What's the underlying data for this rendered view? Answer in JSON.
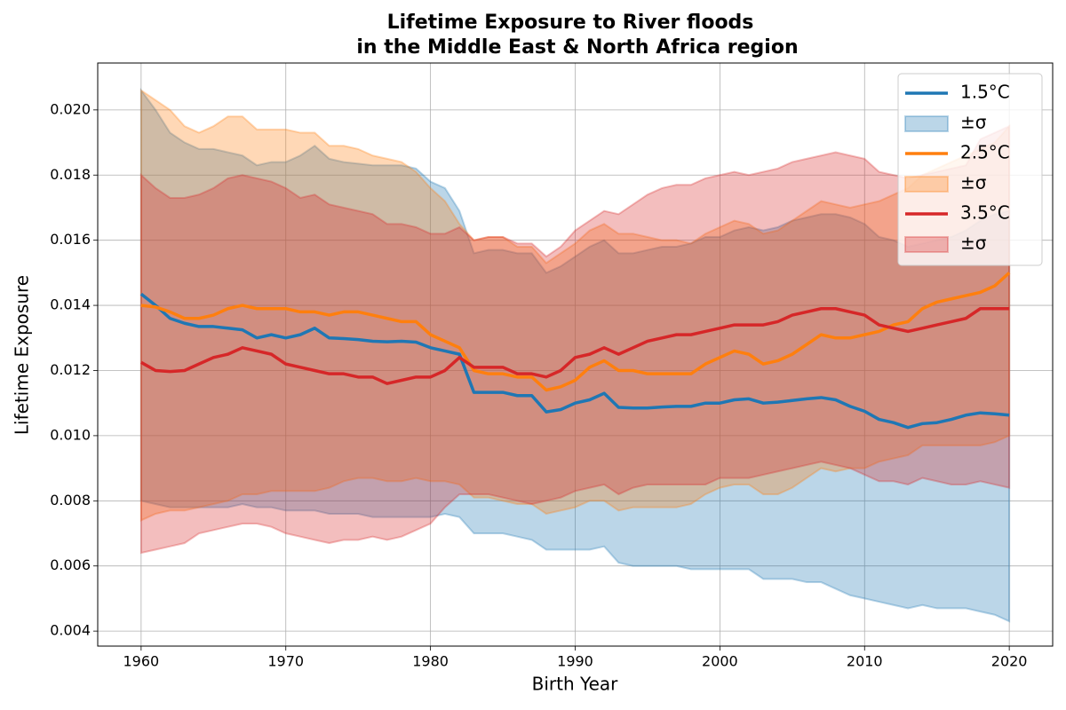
{
  "chart_data": {
    "type": "line_band",
    "title": [
      "Lifetime Exposure to River floods",
      "in the Middle East & North Africa region"
    ],
    "x_label": "Birth Year",
    "y_label": "Lifetime Exposure",
    "x": [
      1960,
      1961,
      1962,
      1963,
      1964,
      1965,
      1966,
      1967,
      1968,
      1969,
      1970,
      1971,
      1972,
      1973,
      1974,
      1975,
      1976,
      1977,
      1978,
      1979,
      1980,
      1981,
      1982,
      1983,
      1984,
      1985,
      1986,
      1987,
      1988,
      1989,
      1990,
      1991,
      1992,
      1993,
      1994,
      1995,
      1996,
      1997,
      1998,
      1999,
      2000,
      2001,
      2002,
      2003,
      2004,
      2005,
      2006,
      2007,
      2008,
      2009,
      2010,
      2011,
      2012,
      2013,
      2014,
      2015,
      2016,
      2017,
      2018,
      2019,
      2020
    ],
    "xlim": [
      1957,
      2023
    ],
    "xticks": [
      1960,
      1970,
      1980,
      1990,
      2000,
      2010,
      2020
    ],
    "ylim": [
      0.00354,
      0.02144
    ],
    "yticks": [
      0.004,
      0.006,
      0.008,
      {
        "value": 0.01,
        "label": "0.010"
      },
      0.012,
      0.014,
      0.016,
      0.018,
      {
        "value": 0.02,
        "label": "0.020"
      }
    ],
    "grid": true,
    "legend": "upper right",
    "series": [
      {
        "name": "1.5°C",
        "color": "#1f77b4",
        "values": [
          0.01435,
          0.014,
          0.0136,
          0.01345,
          0.01335,
          0.01335,
          0.0133,
          0.01325,
          0.013,
          0.0131,
          0.013,
          0.0131,
          0.0133,
          0.013,
          0.01298,
          0.01295,
          0.0129,
          0.01288,
          0.0129,
          0.01287,
          0.0127,
          0.0126,
          0.0125,
          0.01133,
          0.01133,
          0.01133,
          0.01123,
          0.01123,
          0.01073,
          0.0108,
          0.011,
          0.0111,
          0.0113,
          0.01087,
          0.01085,
          0.01085,
          0.01088,
          0.0109,
          0.0109,
          0.011,
          0.011,
          0.0111,
          0.01113,
          0.011,
          0.01103,
          0.01108,
          0.01113,
          0.01117,
          0.0111,
          0.0109,
          0.01075,
          0.0105,
          0.0104,
          0.01025,
          0.01037,
          0.0104,
          0.0105,
          0.01063,
          0.0107,
          0.01067,
          0.01063
        ],
        "band": {
          "name": "±σ",
          "upper": [
            0.0206,
            0.02,
            0.0193,
            0.019,
            0.0188,
            0.0188,
            0.0187,
            0.0186,
            0.0183,
            0.0184,
            0.0184,
            0.0186,
            0.0189,
            0.0185,
            0.0184,
            0.01835,
            0.0183,
            0.0183,
            0.0183,
            0.0182,
            0.0178,
            0.0176,
            0.0169,
            0.0156,
            0.0157,
            0.0157,
            0.0156,
            0.0156,
            0.015,
            0.0152,
            0.0155,
            0.0158,
            0.016,
            0.0156,
            0.0156,
            0.0157,
            0.0158,
            0.0158,
            0.0159,
            0.0161,
            0.0161,
            0.0163,
            0.0164,
            0.0163,
            0.0164,
            0.0166,
            0.0167,
            0.0168,
            0.0168,
            0.0167,
            0.0165,
            0.0161,
            0.016,
            0.0158,
            0.0159,
            0.016,
            0.0161,
            0.0163,
            0.0166,
            0.0168,
            0.0169
          ],
          "lower": [
            0.008,
            0.0079,
            0.0078,
            0.0078,
            0.0078,
            0.0078,
            0.0078,
            0.0079,
            0.0078,
            0.0078,
            0.0077,
            0.0077,
            0.0077,
            0.0076,
            0.0076,
            0.0076,
            0.0075,
            0.0075,
            0.0075,
            0.0075,
            0.0075,
            0.0076,
            0.0075,
            0.007,
            0.007,
            0.007,
            0.0069,
            0.0068,
            0.0065,
            0.0065,
            0.0065,
            0.0065,
            0.0066,
            0.0061,
            0.006,
            0.006,
            0.006,
            0.006,
            0.0059,
            0.0059,
            0.0059,
            0.0059,
            0.0059,
            0.0056,
            0.0056,
            0.0056,
            0.0055,
            0.0055,
            0.0053,
            0.0051,
            0.005,
            0.0049,
            0.0048,
            0.0047,
            0.0048,
            0.0047,
            0.0047,
            0.0047,
            0.0046,
            0.0045,
            0.0043
          ]
        }
      },
      {
        "name": "2.5°C",
        "color": "#ff7f0e",
        "values": [
          0.014,
          0.01395,
          0.0138,
          0.0136,
          0.0136,
          0.0137,
          0.0139,
          0.014,
          0.0139,
          0.0139,
          0.0139,
          0.0138,
          0.0138,
          0.0137,
          0.0138,
          0.0138,
          0.0137,
          0.0136,
          0.0135,
          0.0135,
          0.0131,
          0.0129,
          0.0127,
          0.012,
          0.0119,
          0.0119,
          0.0118,
          0.0118,
          0.0114,
          0.0115,
          0.0117,
          0.0121,
          0.0123,
          0.012,
          0.012,
          0.0119,
          0.0119,
          0.0119,
          0.0119,
          0.0122,
          0.0124,
          0.0126,
          0.0125,
          0.0122,
          0.0123,
          0.0125,
          0.0128,
          0.0131,
          0.013,
          0.013,
          0.0131,
          0.0132,
          0.0134,
          0.0135,
          0.0139,
          0.0141,
          0.0142,
          0.0143,
          0.0144,
          0.0146,
          0.015
        ],
        "band": {
          "name": "±σ",
          "upper": [
            0.0206,
            0.0203,
            0.02,
            0.0195,
            0.0193,
            0.0195,
            0.0198,
            0.0198,
            0.0194,
            0.0194,
            0.0194,
            0.0193,
            0.0193,
            0.0189,
            0.0189,
            0.0188,
            0.0186,
            0.0185,
            0.0184,
            0.0181,
            0.0176,
            0.0172,
            0.0165,
            0.016,
            0.0161,
            0.0161,
            0.0158,
            0.0158,
            0.0153,
            0.0156,
            0.0159,
            0.0163,
            0.0165,
            0.0162,
            0.0162,
            0.0161,
            0.016,
            0.016,
            0.0159,
            0.0162,
            0.0164,
            0.0166,
            0.0165,
            0.0162,
            0.0163,
            0.0166,
            0.0169,
            0.0172,
            0.0171,
            0.017,
            0.0171,
            0.0172,
            0.0174,
            0.0176,
            0.018,
            0.0182,
            0.0184,
            0.0186,
            0.0188,
            0.019,
            0.0195
          ],
          "lower": [
            0.0074,
            0.0076,
            0.0077,
            0.0077,
            0.0078,
            0.0079,
            0.008,
            0.0082,
            0.0082,
            0.0083,
            0.0083,
            0.0083,
            0.0083,
            0.0084,
            0.0086,
            0.0087,
            0.0087,
            0.0086,
            0.0086,
            0.0087,
            0.0086,
            0.0086,
            0.0085,
            0.0081,
            0.0081,
            0.008,
            0.0079,
            0.0079,
            0.0076,
            0.0077,
            0.0078,
            0.008,
            0.008,
            0.0077,
            0.0078,
            0.0078,
            0.0078,
            0.0078,
            0.0079,
            0.0082,
            0.0084,
            0.0085,
            0.0085,
            0.0082,
            0.0082,
            0.0084,
            0.0087,
            0.009,
            0.0089,
            0.009,
            0.009,
            0.0092,
            0.0093,
            0.0094,
            0.0097,
            0.0097,
            0.0097,
            0.0097,
            0.0097,
            0.0098,
            0.01
          ]
        }
      },
      {
        "name": "3.5°C",
        "color": "#d62728",
        "values": [
          0.01225,
          0.012,
          0.01197,
          0.012,
          0.0122,
          0.0124,
          0.0125,
          0.0127,
          0.0126,
          0.0125,
          0.0122,
          0.0121,
          0.012,
          0.0119,
          0.0119,
          0.0118,
          0.0118,
          0.0116,
          0.0117,
          0.0118,
          0.0118,
          0.012,
          0.0124,
          0.0121,
          0.0121,
          0.0121,
          0.0119,
          0.0119,
          0.0118,
          0.012,
          0.0124,
          0.0125,
          0.0127,
          0.0125,
          0.0127,
          0.0129,
          0.013,
          0.0131,
          0.0131,
          0.0132,
          0.0133,
          0.0134,
          0.0134,
          0.0134,
          0.0135,
          0.0137,
          0.0138,
          0.0139,
          0.0139,
          0.0138,
          0.0137,
          0.0134,
          0.0133,
          0.0132,
          0.0133,
          0.0134,
          0.0135,
          0.0136,
          0.0139,
          0.0139,
          0.0139
        ],
        "band": {
          "name": "±σ",
          "upper": [
            0.018,
            0.0176,
            0.0173,
            0.0173,
            0.0174,
            0.0176,
            0.0179,
            0.018,
            0.0179,
            0.0178,
            0.0176,
            0.0173,
            0.0174,
            0.0171,
            0.017,
            0.0169,
            0.0168,
            0.0165,
            0.0165,
            0.0164,
            0.0162,
            0.0162,
            0.0164,
            0.016,
            0.0161,
            0.0161,
            0.0159,
            0.0159,
            0.0155,
            0.0158,
            0.0163,
            0.0166,
            0.0169,
            0.0168,
            0.0171,
            0.0174,
            0.0176,
            0.0177,
            0.0177,
            0.0179,
            0.018,
            0.0181,
            0.018,
            0.0181,
            0.0182,
            0.0184,
            0.0185,
            0.0186,
            0.0187,
            0.0186,
            0.0185,
            0.0181,
            0.018,
            0.0179,
            0.018,
            0.0181,
            0.0182,
            0.0183,
            0.0191,
            0.0193,
            0.0195
          ],
          "lower": [
            0.0064,
            0.0065,
            0.0066,
            0.0067,
            0.007,
            0.0071,
            0.0072,
            0.0073,
            0.0073,
            0.0072,
            0.007,
            0.0069,
            0.0068,
            0.0067,
            0.0068,
            0.0068,
            0.0069,
            0.0068,
            0.0069,
            0.0071,
            0.0073,
            0.0078,
            0.0082,
            0.0082,
            0.0082,
            0.0081,
            0.008,
            0.0079,
            0.008,
            0.0081,
            0.0083,
            0.0084,
            0.0085,
            0.0082,
            0.0084,
            0.0085,
            0.0085,
            0.0085,
            0.0085,
            0.0085,
            0.0087,
            0.0087,
            0.0087,
            0.0088,
            0.0089,
            0.009,
            0.0091,
            0.0092,
            0.0091,
            0.009,
            0.0088,
            0.0086,
            0.0086,
            0.0085,
            0.0087,
            0.0086,
            0.0085,
            0.0085,
            0.0086,
            0.0085,
            0.0084
          ]
        }
      }
    ]
  }
}
